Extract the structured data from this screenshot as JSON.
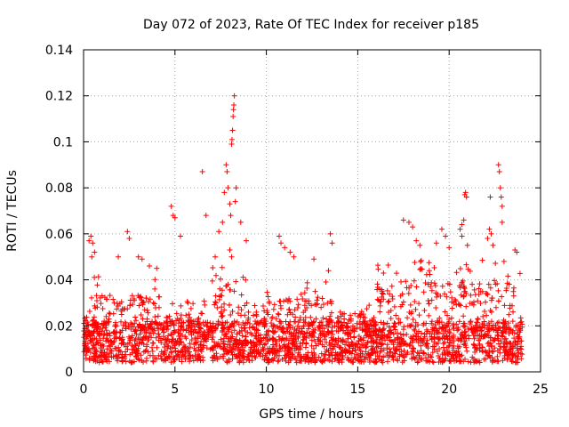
{
  "chart_data": {
    "type": "scatter",
    "title": "Day 072 of 2023, Rate Of TEC Index for receiver p185",
    "xlabel": "GPS time / hours",
    "ylabel": "ROTI / TECUs",
    "xlim": [
      0,
      25
    ],
    "ylim": [
      0,
      0.14
    ],
    "xticks": [
      0,
      5,
      10,
      15,
      20,
      25
    ],
    "yticks": [
      0,
      0.02,
      0.04,
      0.06,
      0.08,
      0.1,
      0.12,
      0.14
    ],
    "xtick_labels": [
      "0",
      "5",
      "10",
      "15",
      "20",
      "25"
    ],
    "ytick_labels": [
      "0",
      "0.02",
      "0.04",
      "0.06",
      "0.08",
      "0.1",
      "0.12",
      "0.14"
    ],
    "grid": true,
    "marker": "+",
    "color": "#ff0000",
    "series": [
      {
        "name": "ROTI",
        "points": [
          [
            0.3,
            0.057
          ],
          [
            0.4,
            0.059
          ],
          [
            0.5,
            0.056
          ],
          [
            0.45,
            0.05
          ],
          [
            0.6,
            0.052
          ],
          [
            1.9,
            0.05
          ],
          [
            2.4,
            0.061
          ],
          [
            2.5,
            0.058
          ],
          [
            3.0,
            0.05
          ],
          [
            3.2,
            0.049
          ],
          [
            3.6,
            0.046
          ],
          [
            4.0,
            0.045
          ],
          [
            4.8,
            0.072
          ],
          [
            4.9,
            0.068
          ],
          [
            5.0,
            0.067
          ],
          [
            5.3,
            0.059
          ],
          [
            6.5,
            0.087
          ],
          [
            6.7,
            0.068
          ],
          [
            7.2,
            0.05
          ],
          [
            7.4,
            0.061
          ],
          [
            7.6,
            0.065
          ],
          [
            7.7,
            0.078
          ],
          [
            7.8,
            0.09
          ],
          [
            7.85,
            0.087
          ],
          [
            7.9,
            0.08
          ],
          [
            8.0,
            0.073
          ],
          [
            8.05,
            0.068
          ],
          [
            8.1,
            0.099
          ],
          [
            8.12,
            0.101
          ],
          [
            8.15,
            0.105
          ],
          [
            8.18,
            0.111
          ],
          [
            8.2,
            0.114
          ],
          [
            8.22,
            0.116
          ],
          [
            8.25,
            0.12
          ],
          [
            8.3,
            0.074
          ],
          [
            8.35,
            0.08
          ],
          [
            8.0,
            0.053
          ],
          [
            8.1,
            0.05
          ],
          [
            8.6,
            0.065
          ],
          [
            8.9,
            0.057
          ],
          [
            10.7,
            0.059
          ],
          [
            10.8,
            0.056
          ],
          [
            11.0,
            0.054
          ],
          [
            11.3,
            0.052
          ],
          [
            11.5,
            0.05
          ],
          [
            12.6,
            0.049
          ],
          [
            13.5,
            0.06
          ],
          [
            13.6,
            0.056
          ],
          [
            13.4,
            0.044
          ],
          [
            17.5,
            0.066
          ],
          [
            17.8,
            0.065
          ],
          [
            18.0,
            0.063
          ],
          [
            18.2,
            0.057
          ],
          [
            18.4,
            0.055
          ],
          [
            19.3,
            0.056
          ],
          [
            19.6,
            0.062
          ],
          [
            19.8,
            0.059
          ],
          [
            20.0,
            0.054
          ],
          [
            20.6,
            0.062
          ],
          [
            20.7,
            0.064
          ],
          [
            20.8,
            0.066
          ],
          [
            20.85,
            0.077
          ],
          [
            20.9,
            0.078
          ],
          [
            20.95,
            0.076
          ],
          [
            20.7,
            0.059
          ],
          [
            21.0,
            0.055
          ],
          [
            22.1,
            0.058
          ],
          [
            22.2,
            0.062
          ],
          [
            22.3,
            0.06
          ],
          [
            22.25,
            0.076
          ],
          [
            22.4,
            0.055
          ],
          [
            22.7,
            0.09
          ],
          [
            22.75,
            0.087
          ],
          [
            22.8,
            0.08
          ],
          [
            22.85,
            0.076
          ],
          [
            22.9,
            0.072
          ],
          [
            22.9,
            0.065
          ],
          [
            23.0,
            0.048
          ],
          [
            23.6,
            0.053
          ],
          [
            23.7,
            0.052
          ]
        ]
      }
    ],
    "note": "Dense band of ROTI values roughly 0.005–0.035 TECU/s spans 0–24 h; individual scattered points above are listed."
  }
}
